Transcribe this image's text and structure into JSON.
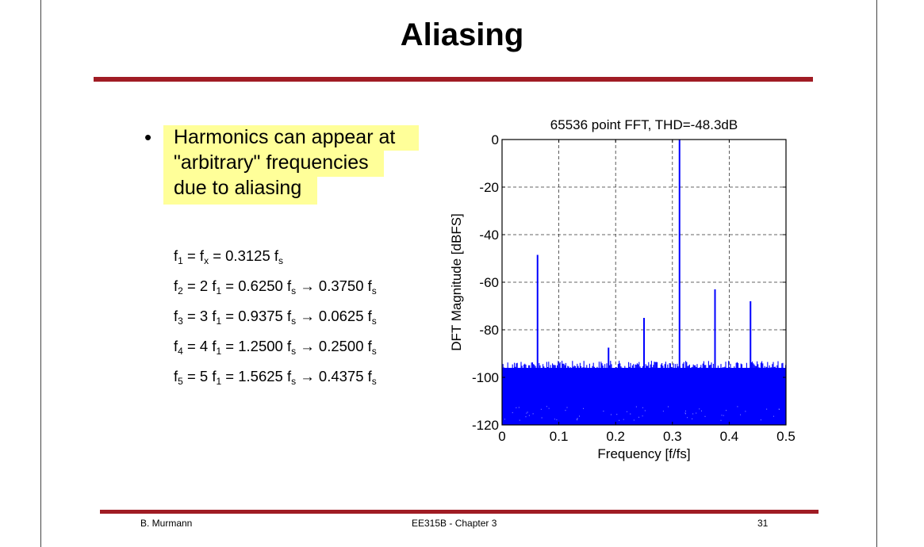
{
  "slide": {
    "title": "Aliasing",
    "bullet_char": "•",
    "bullet_lines": [
      "Harmonics can appear at",
      "\"arbitrary\" frequencies",
      "due to aliasing"
    ],
    "highlight_color": "#ffff99",
    "accent_color": "#a01c24"
  },
  "equations": [
    {
      "lhs_f": "f",
      "lhs_sub": "1",
      "mid": " = f",
      "mid_sub": "x",
      "rest": " = 0.3125 f",
      "rest_sub": "s",
      "alias": "",
      "alias_sub": ""
    },
    {
      "lhs_f": "f",
      "lhs_sub": "2",
      "mid": " = 2 f",
      "mid_sub": "1",
      "rest": " = 0.6250 f",
      "rest_sub": "s",
      "alias": " → 0.3750 f",
      "alias_sub": "s"
    },
    {
      "lhs_f": "f",
      "lhs_sub": "3",
      "mid": " = 3 f",
      "mid_sub": "1",
      "rest": " = 0.9375 f",
      "rest_sub": "s",
      "alias": " → 0.0625 f",
      "alias_sub": "s"
    },
    {
      "lhs_f": "f",
      "lhs_sub": "4",
      "mid": " = 4 f",
      "mid_sub": "1",
      "rest": " = 1.2500 f",
      "rest_sub": "s",
      "alias": " → 0.2500 f",
      "alias_sub": "s"
    },
    {
      "lhs_f": "f",
      "lhs_sub": "5",
      "mid": " = 5 f",
      "mid_sub": "1",
      "rest": " = 1.5625 f",
      "rest_sub": "s",
      "alias": " → 0.4375 f",
      "alias_sub": "s"
    }
  ],
  "chart_data": {
    "type": "line",
    "title": "65536 point FFT, THD=-48.3dB",
    "xlabel": "Frequency [f/fs]",
    "ylabel": "DFT Magnitude [dBFS]",
    "xlim": [
      0,
      0.5
    ],
    "ylim": [
      -120,
      0
    ],
    "xticks": [
      0,
      0.1,
      0.2,
      0.3,
      0.4,
      0.5
    ],
    "xtick_labels": [
      "0",
      "0.1",
      "0.2",
      "0.3",
      "0.4",
      "0.5"
    ],
    "yticks": [
      0,
      -20,
      -40,
      -60,
      -80,
      -100,
      -120
    ],
    "ytick_labels": [
      "0",
      "-20",
      "-40",
      "-60",
      "-80",
      "-100",
      "-120"
    ],
    "grid": true,
    "series_color": "#0000ff",
    "noise_floor": {
      "top": -93,
      "bottom": -120
    },
    "spikes": [
      {
        "x": 0.0625,
        "y": -48.5
      },
      {
        "x": 0.1875,
        "y": -87.5
      },
      {
        "x": 0.25,
        "y": -75
      },
      {
        "x": 0.3125,
        "y": 0
      },
      {
        "x": 0.375,
        "y": -63
      },
      {
        "x": 0.4375,
        "y": -68
      }
    ]
  },
  "footer": {
    "author": "B. Murmann",
    "course": "EE315B - Chapter 3",
    "page": "31"
  }
}
